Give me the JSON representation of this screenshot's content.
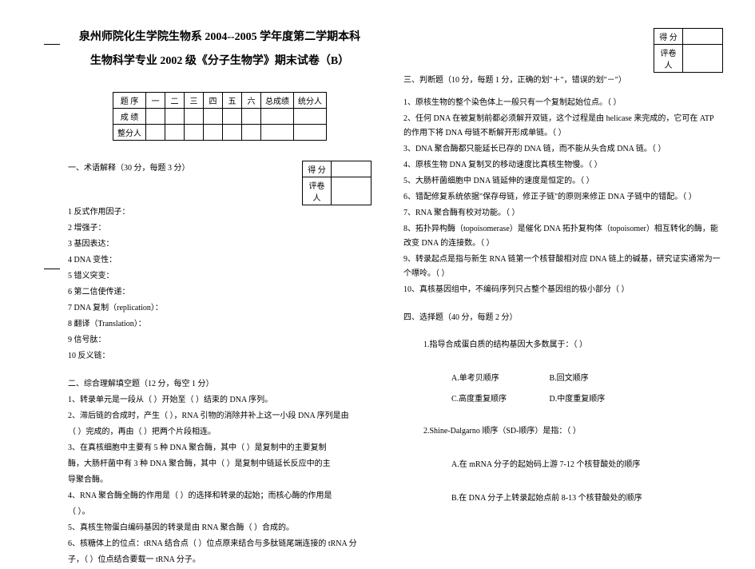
{
  "binding": {},
  "title": {
    "line1": "泉州师院化生学院生物系 2004--2005 学年度第二学期本科",
    "line2": "生物科学专业 2002 级《分子生物学》期末试卷（B）"
  },
  "scoreTable": {
    "headers": [
      "题 序",
      "一",
      "二",
      "三",
      "四",
      "五",
      "六",
      "总成绩",
      "统分人"
    ],
    "row1Label": "成 绩",
    "row2Label": "整分人"
  },
  "smallBox": {
    "score": "得  分",
    "grader": "评卷人"
  },
  "section1": {
    "title": "一、术语解释（30 分，每题 3 分）",
    "items": [
      "1 反式作用因子：",
      "2 增强子：",
      "3 基因表达：",
      "4 DNA 变性：",
      "5 错义突变：",
      "6 第二信使传递：",
      "7 DNA 复制（replication）：",
      "8 翻译（Translation）：",
      "9 信号肽：",
      "10 反义链："
    ]
  },
  "section2": {
    "title": "二、综合理解填空题（12 分，每空 1 分）",
    "q1": "1、转录单元是一段从（          ）开始至（          ）结束的 DNA 序列。",
    "q2a": "2、滞后链的合成时，产生（          ），RNA 引物的消除并补上这一小段 DNA 序列是由",
    "q2b": "（          ）完成的，再由（          ）把两个片段相连。",
    "q3a": "3、在真核细胞中主要有 5 种 DNA 聚合酶，其中（          ）是复制中的主要复制",
    "q3b": "酶，大肠杆菌中有 3 种 DNA 聚合酶，其中（          ）是复制中链延长反应中的主",
    "q3c": "导聚合酶。",
    "q4a": "4、RNA 聚合酶全酶的作用是（          ）的选择和转录的起始；而核心酶的作用是",
    "q4b": "（          ）。",
    "q5": "5、真核生物蛋白编码基因的转录是由 RNA 聚合酶（          ）合成的。",
    "q6a": "6、核糖体上的位点：tRNA 结合点（          ）位点原来结合与多肽链尾端连接的 tRNA 分",
    "q6b": "子，（          ）位点结合要载一 tRNA 分子。"
  },
  "section3": {
    "title": "三、判断题（10 分，每题 1 分，正确的划\"＋\"，错误的划\"－\"）",
    "items": [
      "1、原核生物的整个染色体上一般只有一个复制起始位点。（    ）",
      "2、任何 DNA 在被复制前都必须解开双链，这个过程是由 helicase 来完成的，它可在 ATP 的作用下将 DNA 母链不断解开形成单链。（    ）",
      "3、DNA 聚合酶都只能延长已存的 DNA 链，而不能从头合成 DNA 链。（    ）",
      "4、原核生物 DNA 复制叉的移动速度比真核生物慢。（    ）",
      "5、大肠杆菌细胞中 DNA 链延伸的速度是恒定的。（    ）",
      "6、错配修复系统依据\"保存母链，修正子链\"的原则来修正 DNA 子链中的错配。（    ）",
      "7、RNA 聚合酶有校对功能。（    ）",
      "8、拓扑异构酶（topoisomerase）是催化 DNA 拓扑复构体（topoisomer）相互转化的酶，能改变 DNA 的连接数。（    ）",
      "9、转录起点是指与新生 RNA 链第一个核苷酸相对应 DNA 链上的碱基，研究证实通常为一个嘌呤。（    ）",
      "10、真核基因组中，不编码序列只占整个基因组的极小部分（    ）"
    ]
  },
  "section4": {
    "title": "四、选择题（40 分，每题 2 分）",
    "q1": {
      "stem": "1.指导合成蛋白质的结构基因大多数属于：（    ）",
      "optA": "A.单考贝顺序",
      "optB": "B.回文顺序",
      "optC": "C.高度重复顺序",
      "optD": "D.中度重复顺序"
    },
    "q2": {
      "stem": "2.Shine-Dalgarno 顺序（SD-顺序）是指：（    ）",
      "optA": "A.在 mRNA 分子的起始码上游 7-12 个核苷酸处的顺序",
      "optB": "B.在 DNA 分子上转录起始点前 8-13 个核苷酸处的顺序"
    }
  }
}
